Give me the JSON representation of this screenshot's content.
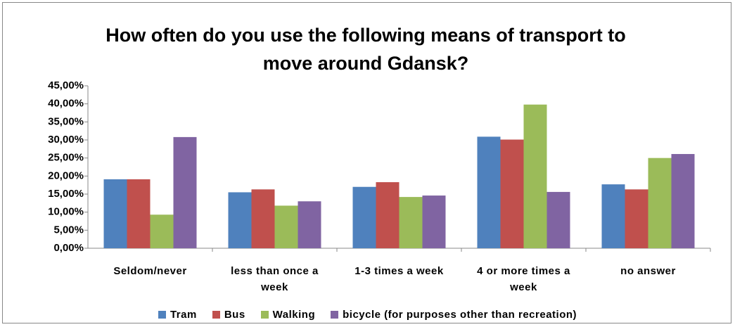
{
  "chart_data": {
    "type": "bar",
    "title": "How often do you use the following means of transport to move around Gdansk?",
    "categories": [
      "Seldom/never",
      "less than once a week",
      "1-3 times a week",
      "4 or more times a week",
      "no answer"
    ],
    "series": [
      {
        "name": "Tram",
        "color": "#4f81bd",
        "values": [
          19.1,
          15.5,
          17.0,
          30.9,
          17.7
        ]
      },
      {
        "name": "Bus",
        "color": "#c0504d",
        "values": [
          19.1,
          16.3,
          18.3,
          30.1,
          16.3
        ]
      },
      {
        "name": "Walking",
        "color": "#9bbb59",
        "values": [
          9.3,
          11.8,
          14.2,
          39.8,
          25.0
        ]
      },
      {
        "name": "bicycle (for purposes other than recreation)",
        "color": "#8064a2",
        "values": [
          30.8,
          13.0,
          14.6,
          15.6,
          26.1
        ]
      }
    ],
    "ylim": [
      0,
      45
    ],
    "yticks": [
      {
        "value": 0,
        "label": "0,00%"
      },
      {
        "value": 5,
        "label": "5,00%"
      },
      {
        "value": 10,
        "label": "10,00%"
      },
      {
        "value": 15,
        "label": "15,00%"
      },
      {
        "value": 20,
        "label": "20,00%"
      },
      {
        "value": 25,
        "label": "25,00%"
      },
      {
        "value": 30,
        "label": "30,00%"
      },
      {
        "value": 35,
        "label": "35,00%"
      },
      {
        "value": 40,
        "label": "40,00%"
      },
      {
        "value": 45,
        "label": "45,00%"
      }
    ],
    "grid": false
  }
}
